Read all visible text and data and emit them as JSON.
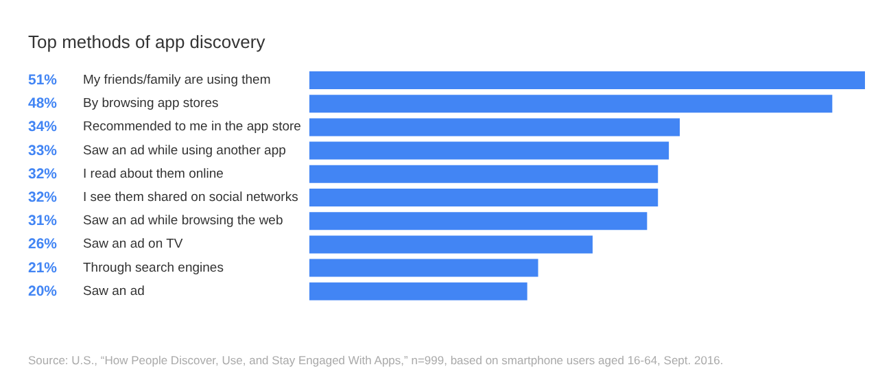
{
  "chart_data": {
    "type": "bar",
    "orientation": "horizontal",
    "title": "Top methods of app discovery",
    "categories": [
      "My friends/family are using them",
      "By browsing app stores",
      "Recommended to me in the app store",
      "Saw an ad while using another app",
      "I read about them online",
      "I see them shared on social networks",
      "Saw an ad while browsing the web",
      "Saw an ad on TV",
      "Through search engines",
      "Saw an ad"
    ],
    "values": [
      51,
      48,
      34,
      33,
      32,
      32,
      31,
      26,
      21,
      20
    ],
    "value_labels": [
      "51%",
      "48%",
      "34%",
      "33%",
      "32%",
      "32%",
      "31%",
      "26%",
      "21%",
      "20%"
    ],
    "color": "#4285f4",
    "annotations": [
      "Source: U.S., “How People Discover, Use, and Stay Engaged With Apps,” n=999, based on smartphone users aged 16-64, Sept. 2016."
    ]
  }
}
